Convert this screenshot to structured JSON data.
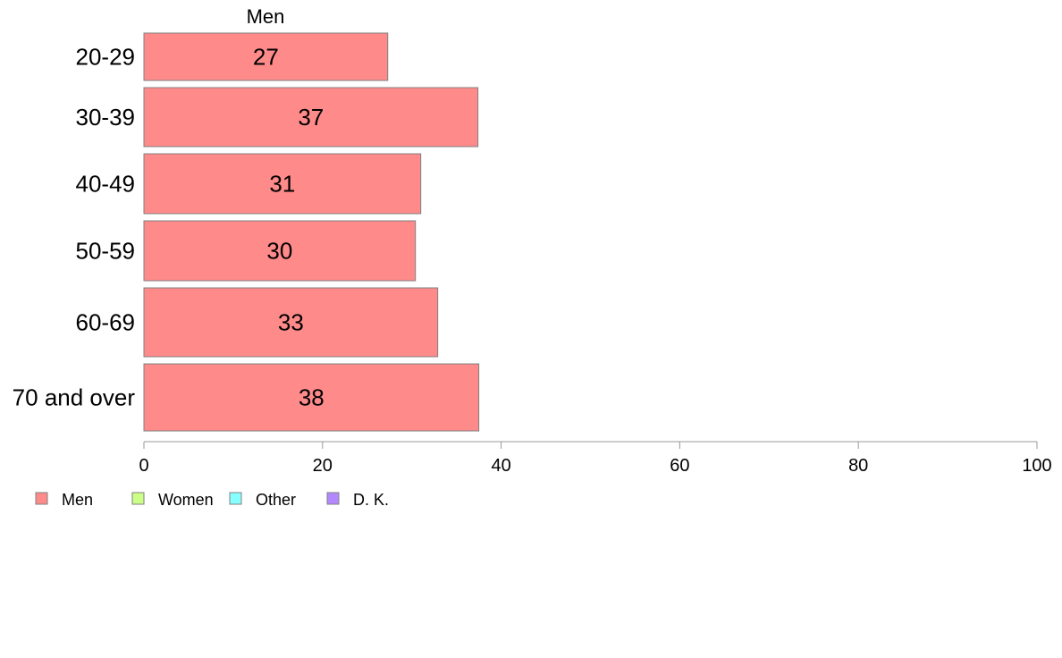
{
  "chart_data": {
    "type": "bar",
    "orientation": "horizontal",
    "categories": [
      "20-29",
      "30-39",
      "40-49",
      "50-59",
      "60-69",
      "70 and over"
    ],
    "series": [
      {
        "name": "Men",
        "values": [
          27.3,
          37.4,
          31,
          30.4,
          32.9,
          37.5
        ],
        "labels": [
          "27",
          "37",
          "31",
          "30",
          "33",
          "38"
        ],
        "color": "#ff8a8a"
      }
    ],
    "panel_title": "Men",
    "xlim": [
      0,
      100
    ],
    "xticks": [
      0,
      20,
      40,
      60,
      80,
      100
    ],
    "grid": false,
    "legend": {
      "placement": "bottom-left",
      "entries": [
        {
          "name": "Men",
          "color": "#ff8a8a"
        },
        {
          "name": "Women",
          "color": "#ccff88"
        },
        {
          "name": "Other",
          "color": "#88ffff"
        },
        {
          "name": "D. K.",
          "color": "#b388ff"
        }
      ]
    },
    "colors": {
      "bar_stroke": "#808080",
      "axis": "#999999"
    }
  }
}
